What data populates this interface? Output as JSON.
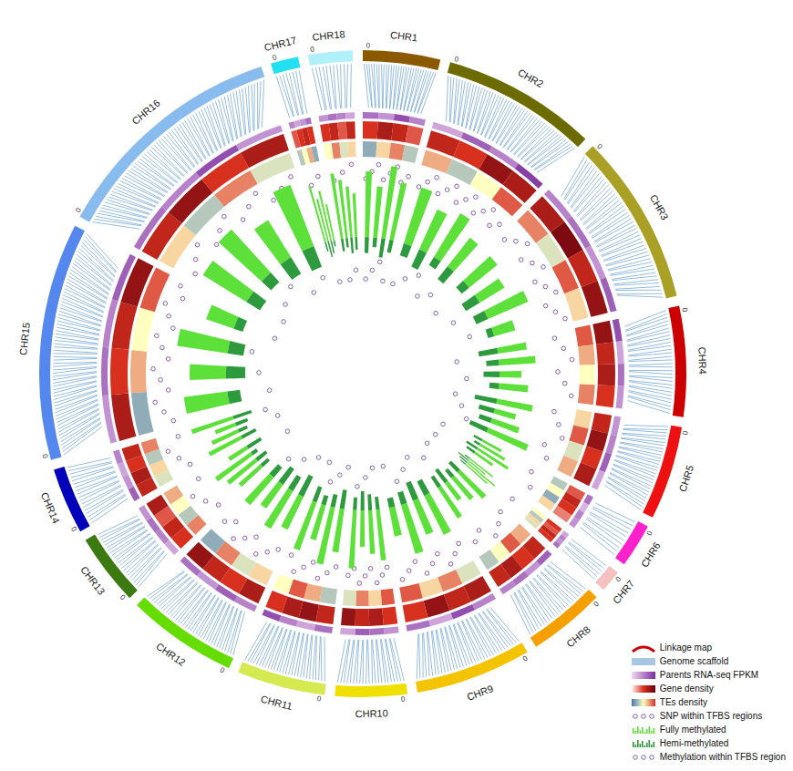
{
  "chart_data": {
    "type": "circos",
    "legend": "bottom-right",
    "chromosomes": [
      {
        "name": "CHR1",
        "color": "#8b5a00",
        "length": 14,
        "start": 0
      },
      {
        "name": "CHR2",
        "color": "#6b6b00",
        "length": 28,
        "start": 0
      },
      {
        "name": "CHR3",
        "color": "#a9a025",
        "length": 31,
        "start": 0
      },
      {
        "name": "CHR4",
        "color": "#cc0000",
        "length": 20,
        "start": 0
      },
      {
        "name": "CHR5",
        "color": "#ee1111",
        "length": 17,
        "start": 0
      },
      {
        "name": "CHR6",
        "color": "#ff22cc",
        "length": 8,
        "start": 0
      },
      {
        "name": "CHR7",
        "color": "#f4c0c0",
        "length": 4,
        "start": 0
      },
      {
        "name": "CHR8",
        "color": "#f5a000",
        "length": 14,
        "start": 0
      },
      {
        "name": "CHR9",
        "color": "#f5c400",
        "length": 21,
        "start": 0
      },
      {
        "name": "CHR10",
        "color": "#f0e000",
        "length": 13,
        "start": 0
      },
      {
        "name": "CHR11",
        "color": "#d4ea50",
        "length": 16,
        "start": 0
      },
      {
        "name": "CHR12",
        "color": "#66dd00",
        "length": 20,
        "start": 0
      },
      {
        "name": "CHR13",
        "color": "#3a7a10",
        "length": 13,
        "start": 0
      },
      {
        "name": "CHR14",
        "color": "#0000bb",
        "length": 12,
        "start": 0
      },
      {
        "name": "CHR15",
        "color": "#5588ee",
        "length": 43,
        "start": 0
      },
      {
        "name": "CHR16",
        "color": "#88bbee",
        "length": 43,
        "start": 0
      },
      {
        "name": "CHR17",
        "color": "#22e0f0",
        "length": 5,
        "start": 0
      },
      {
        "name": "CHR18",
        "color": "#b0f0f8",
        "length": 8,
        "start": 0
      }
    ],
    "tracks": [
      {
        "name": "Linkage map",
        "type": "ideogram",
        "color": "#cc0000",
        "marker": "arc"
      },
      {
        "name": "Genome scaffold",
        "type": "links",
        "color": "#4f8fca",
        "marker": "stripes",
        "values": [
          30,
          50,
          45,
          30,
          28,
          10,
          6,
          22,
          35,
          22,
          28,
          35,
          22,
          18,
          70,
          70,
          8,
          12
        ]
      },
      {
        "name": "Parents RNA-seq FPKM",
        "type": "heatmap",
        "colors": [
          "#f2d7f5",
          "#7b2d9e"
        ],
        "marker": "gradient",
        "values": [
          [
            0.6,
            0.4,
            0.8,
            0.5
          ],
          [
            0.3,
            0.7,
            0.5,
            0.9
          ],
          [
            0.5,
            0.6,
            0.4,
            0.7
          ],
          [
            0.8,
            0.3,
            0.6,
            0.4
          ],
          [
            0.4,
            0.5,
            0.7,
            0.3
          ],
          [
            0.6,
            0.2,
            0.5,
            0.4
          ],
          [
            0.3,
            0.5,
            0.4,
            0.6
          ],
          [
            0.7,
            0.4,
            0.6,
            0.5
          ],
          [
            0.5,
            0.8,
            0.3,
            0.6
          ],
          [
            0.4,
            0.6,
            0.7,
            0.3
          ],
          [
            0.6,
            0.3,
            0.5,
            0.8
          ],
          [
            0.5,
            0.7,
            0.4,
            0.6
          ],
          [
            0.3,
            0.5,
            0.6,
            0.4
          ],
          [
            0.7,
            0.4,
            0.3,
            0.5
          ],
          [
            0.4,
            0.6,
            0.5,
            0.7
          ],
          [
            0.6,
            0.5,
            0.8,
            0.4
          ],
          [
            0.5,
            0.3,
            0.4,
            0.6
          ],
          [
            0.4,
            0.6,
            0.5,
            0.3
          ]
        ]
      },
      {
        "name": "Gene density",
        "type": "heatmap",
        "colors": [
          "#fff5f0",
          "#d7301f",
          "#67000d"
        ],
        "marker": "gradient",
        "values": [
          [
            0.5,
            0.7,
            0.6,
            0.4
          ],
          [
            0.6,
            0.5,
            0.8,
            0.7
          ],
          [
            0.7,
            0.9,
            0.6,
            0.8
          ],
          [
            0.8,
            0.6,
            0.7,
            0.5
          ],
          [
            0.6,
            0.8,
            0.5,
            0.7
          ],
          [
            0.4,
            0.6,
            0.5,
            0.3
          ],
          [
            0.5,
            0.4,
            0.6,
            0.5
          ],
          [
            0.6,
            0.5,
            0.7,
            0.6
          ],
          [
            0.7,
            0.6,
            0.8,
            0.5
          ],
          [
            0.5,
            0.7,
            0.6,
            0.8
          ],
          [
            0.6,
            0.8,
            0.7,
            0.5
          ],
          [
            0.7,
            0.5,
            0.6,
            0.8
          ],
          [
            0.5,
            0.6,
            0.4,
            0.7
          ],
          [
            0.6,
            0.7,
            0.5,
            0.6
          ],
          [
            0.7,
            0.5,
            0.6,
            0.8
          ],
          [
            0.6,
            0.8,
            0.5,
            0.7
          ],
          [
            0.4,
            0.5,
            0.6,
            0.5
          ],
          [
            0.5,
            0.6,
            0.4,
            0.6
          ]
        ]
      },
      {
        "name": "TEs density",
        "type": "heatmap",
        "colors": [
          "#4575b4",
          "#ffffbf",
          "#d73027"
        ],
        "marker": "gradient",
        "values": [
          [
            0.2,
            0.6,
            0.8,
            0.3
          ],
          [
            0.7,
            0.3,
            0.5,
            0.9
          ],
          [
            0.8,
            0.4,
            0.9,
            0.6
          ],
          [
            0.9,
            0.7,
            0.5,
            0.8
          ],
          [
            0.6,
            0.9,
            0.4,
            0.7
          ],
          [
            0.3,
            0.5,
            0.2,
            0.6
          ],
          [
            0.5,
            0.3,
            0.6,
            0.4
          ],
          [
            0.7,
            0.9,
            0.5,
            0.3
          ],
          [
            0.4,
            0.8,
            0.6,
            0.9
          ],
          [
            0.9,
            0.6,
            0.8,
            0.4
          ],
          [
            0.3,
            0.7,
            0.9,
            0.5
          ],
          [
            0.6,
            0.4,
            0.8,
            0.2
          ],
          [
            0.8,
            0.3,
            0.5,
            0.7
          ],
          [
            0.4,
            0.6,
            0.3,
            0.8
          ],
          [
            0.2,
            0.7,
            0.5,
            0.9
          ],
          [
            0.6,
            0.3,
            0.8,
            0.4
          ],
          [
            0.3,
            0.5,
            0.7,
            0.2
          ],
          [
            0.5,
            0.8,
            0.4,
            0.6
          ]
        ]
      },
      {
        "name": "SNP within TFBS regions",
        "type": "scatter",
        "color": "#7b4fa0",
        "marker": "circles",
        "values": [
          8,
          14,
          12,
          6,
          5,
          2,
          1,
          5,
          9,
          8,
          7,
          8,
          4,
          4,
          14,
          12,
          2,
          3
        ]
      },
      {
        "name": "Fully methylated",
        "type": "bar",
        "color": "#5ee03a",
        "marker": "bars",
        "values": [
          [
            0.9,
            0.7,
            1.0,
            0.8
          ],
          [
            0.8,
            0.6,
            0.7,
            0.5
          ],
          [
            0.5,
            0.4,
            0.6,
            0.3
          ],
          [
            0.4,
            0.5,
            0.3,
            0.4
          ],
          [
            0.5,
            0.3,
            0.4,
            0.6
          ],
          [
            0.3,
            0.4,
            0.5,
            0.3
          ],
          [
            0.4,
            0.3,
            0.5,
            0.4
          ],
          [
            0.5,
            0.4,
            0.3,
            0.5
          ],
          [
            0.6,
            0.5,
            0.7,
            0.4
          ],
          [
            0.7,
            0.6,
            0.5,
            0.8
          ],
          [
            0.6,
            0.8,
            0.5,
            0.7
          ],
          [
            0.5,
            0.6,
            0.4,
            0.5
          ],
          [
            0.4,
            0.5,
            0.6,
            0.3
          ],
          [
            0.5,
            0.4,
            0.3,
            0.6
          ],
          [
            0.6,
            0.5,
            0.7,
            0.4
          ],
          [
            0.7,
            0.8,
            0.6,
            0.9
          ],
          [
            0.8,
            0.6,
            0.7,
            0.5
          ],
          [
            0.9,
            0.8,
            0.7,
            0.6
          ]
        ]
      },
      {
        "name": "Hemi-methylated",
        "type": "bar",
        "color": "#2e9a3e",
        "marker": "bars",
        "values": [
          [
            0.5,
            0.3,
            0.6,
            0.4
          ],
          [
            0.4,
            0.6,
            0.3,
            0.5
          ],
          [
            0.3,
            0.5,
            0.4,
            0.2
          ],
          [
            0.6,
            0.4,
            0.5,
            0.3
          ],
          [
            0.7,
            0.5,
            0.4,
            0.6
          ],
          [
            0.3,
            0.2,
            0.4,
            0.3
          ],
          [
            0.2,
            0.4,
            0.3,
            0.2
          ],
          [
            0.4,
            0.3,
            0.5,
            0.4
          ],
          [
            0.5,
            0.6,
            0.4,
            0.3
          ],
          [
            0.4,
            0.5,
            0.6,
            0.4
          ],
          [
            0.6,
            0.4,
            0.3,
            0.5
          ],
          [
            0.7,
            0.5,
            0.6,
            0.4
          ],
          [
            0.3,
            0.4,
            0.2,
            0.5
          ],
          [
            0.5,
            0.3,
            0.4,
            0.6
          ],
          [
            0.4,
            0.6,
            0.5,
            0.3
          ],
          [
            0.5,
            0.4,
            0.6,
            0.7
          ],
          [
            0.3,
            0.5,
            0.4,
            0.2
          ],
          [
            0.4,
            0.3,
            0.5,
            0.4
          ]
        ]
      },
      {
        "name": "Methylation within TFBS region",
        "type": "scatter",
        "color": "#6a5aa8",
        "marker": "circles",
        "values": [
          4,
          5,
          3,
          2,
          3,
          1,
          1,
          2,
          4,
          3,
          4,
          3,
          1,
          2,
          4,
          5,
          1,
          2
        ]
      }
    ]
  }
}
